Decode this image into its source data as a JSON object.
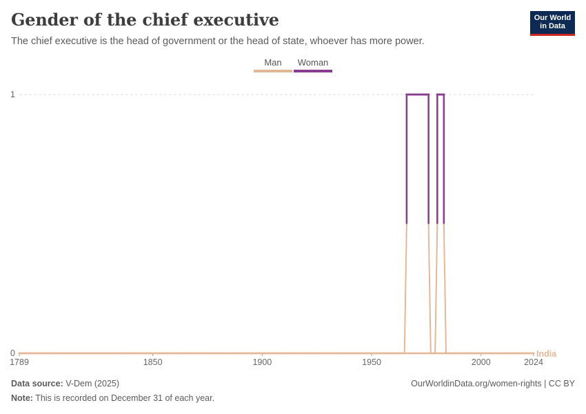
{
  "header": {
    "title": "Gender of the chief executive",
    "subtitle": "The chief executive is the head of government or the head of state, whoever has more power."
  },
  "logo": {
    "line1": "Our World",
    "line2": "in Data"
  },
  "footer": {
    "source_label": "Data source:",
    "source_value": "V-Dem (2025)",
    "note_label": "Note:",
    "note_value": "This is recorded on December 31 of each year.",
    "credit": "OurWorldinData.org/women-rights | CC BY"
  },
  "chart_data": {
    "type": "area",
    "stacked": true,
    "entity": "India",
    "x_range": [
      1789,
      2024
    ],
    "x_ticks": [
      1789,
      1850,
      1900,
      1950,
      2000,
      2024
    ],
    "y_range": [
      0,
      1
    ],
    "y_ticks": [
      0,
      1
    ],
    "grid": "horizontal",
    "legend_position": "top-center",
    "series": [
      {
        "name": "Man",
        "color": "#e4b896"
      },
      {
        "name": "Woman",
        "color": "#883b8f"
      }
    ],
    "woman_years": [
      1966,
      1967,
      1968,
      1969,
      1970,
      1971,
      1972,
      1973,
      1974,
      1975,
      1976,
      1980,
      1981,
      1982,
      1983
    ],
    "no_data_years": [
      1977,
      1978,
      1979
    ],
    "note": "All other years from 1789 to 2024 have a value of 0 for both Man and Woman series except as listed."
  }
}
